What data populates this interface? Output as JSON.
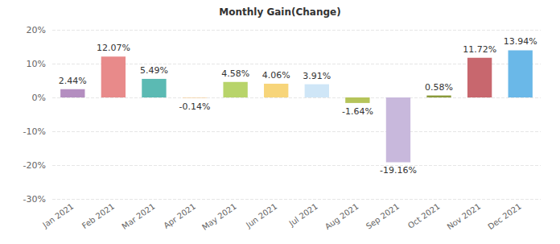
{
  "chart_data": {
    "type": "bar",
    "title": "Monthly Gain(Change)",
    "categories": [
      "Jan 2021",
      "Feb 2021",
      "Mar 2021",
      "Apr 2021",
      "May 2021",
      "Jun 2021",
      "Jul 2021",
      "Aug 2021",
      "Sep 2021",
      "Oct 2021",
      "Nov 2021",
      "Dec 2021"
    ],
    "values": [
      2.44,
      12.07,
      5.49,
      -0.14,
      4.58,
      4.06,
      3.91,
      -1.64,
      -19.16,
      0.58,
      11.72,
      13.94
    ],
    "value_labels": [
      "2.44%",
      "12.07%",
      "5.49%",
      "-0.14%",
      "4.58%",
      "4.06%",
      "3.91%",
      "-1.64%",
      "-19.16%",
      "0.58%",
      "11.72%",
      "13.94%"
    ],
    "colors": [
      "#b48ec0",
      "#e88a8a",
      "#5bbab3",
      "#f5c98a",
      "#b8d46a",
      "#f7d57a",
      "#cfe6f7",
      "#b5c45a",
      "#c8b8dc",
      "#8a9a3a",
      "#c8676e",
      "#6ab8e8"
    ],
    "ylim": [
      -30,
      20
    ],
    "yticks": [
      {
        "value": -30,
        "label": "-30%"
      },
      {
        "value": -20,
        "label": "-20%"
      },
      {
        "value": -10,
        "label": "-10%"
      },
      {
        "value": 0,
        "label": "0%"
      },
      {
        "value": 10,
        "label": "10%"
      },
      {
        "value": 20,
        "label": "20%"
      }
    ],
    "grid": true,
    "data_labels": true
  }
}
